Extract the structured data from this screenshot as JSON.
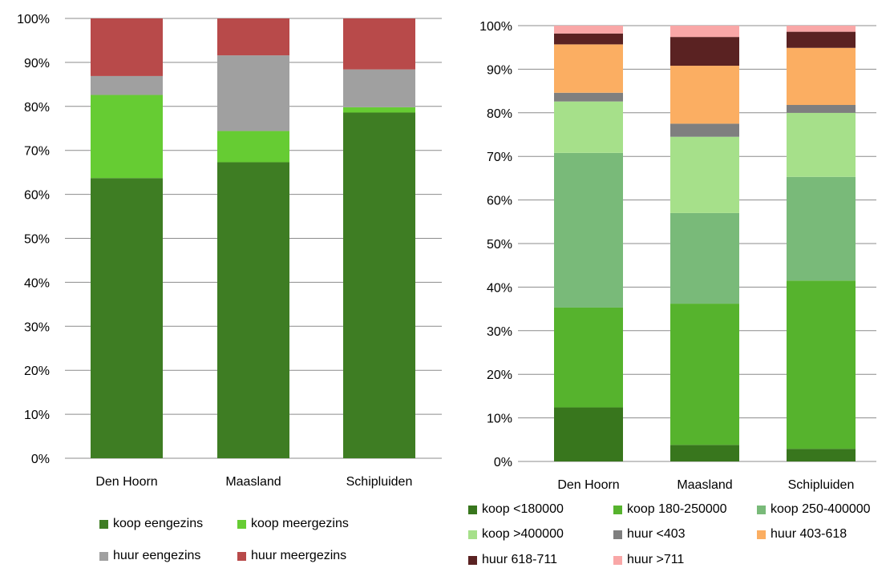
{
  "chart_data": [
    {
      "type": "bar",
      "stacked": true,
      "categories": [
        "Den Hoorn",
        "Maasland",
        "Schipluiden"
      ],
      "ylim": [
        0,
        100
      ],
      "y_ticks": [
        "0%",
        "10%",
        "20%",
        "30%",
        "40%",
        "50%",
        "60%",
        "70%",
        "80%",
        "90%",
        "100%"
      ],
      "grid": true,
      "legend_position": "bottom",
      "series": [
        {
          "name": "koop eengezins",
          "color": "#3e7d23",
          "values": [
            63.7,
            67.3,
            78.6
          ]
        },
        {
          "name": "koop meergezins",
          "color": "#66cc33",
          "values": [
            18.9,
            7.1,
            1.2
          ]
        },
        {
          "name": "huur eengezins",
          "color": "#a0a0a0",
          "values": [
            4.3,
            17.2,
            8.6
          ]
        },
        {
          "name": "huur meergezins",
          "color": "#b84a4a",
          "values": [
            13.1,
            8.4,
            11.6
          ]
        }
      ]
    },
    {
      "type": "bar",
      "stacked": true,
      "categories": [
        "Den Hoorn",
        "Maasland",
        "Schipluiden"
      ],
      "ylim": [
        0,
        100
      ],
      "y_ticks": [
        "0%",
        "10%",
        "20%",
        "30%",
        "40%",
        "50%",
        "60%",
        "70%",
        "80%",
        "90%",
        "100%"
      ],
      "grid": true,
      "legend_position": "bottom",
      "series": [
        {
          "name": "koop <180000",
          "color": "#38761d",
          "values": [
            12.4,
            3.8,
            2.9
          ]
        },
        {
          "name": "koop 180-250000",
          "color": "#56b32d",
          "values": [
            22.9,
            32.4,
            38.6
          ]
        },
        {
          "name": "koop 250-400000",
          "color": "#79ba79",
          "values": [
            35.5,
            20.8,
            23.8
          ]
        },
        {
          "name": "koop >400000",
          "color": "#a6e08a",
          "values": [
            11.8,
            17.5,
            14.7
          ]
        },
        {
          "name": "huur <403",
          "color": "#7f7f7f",
          "values": [
            2.0,
            3.0,
            1.8
          ]
        },
        {
          "name": "huur 403-618",
          "color": "#fbae62",
          "values": [
            11.1,
            13.3,
            13.1
          ]
        },
        {
          "name": "huur 618-711",
          "color": "#5a2222",
          "values": [
            2.5,
            6.6,
            3.7
          ]
        },
        {
          "name": "huur >711",
          "color": "#f9a7a7",
          "values": [
            1.8,
            2.6,
            1.4
          ]
        }
      ]
    }
  ]
}
